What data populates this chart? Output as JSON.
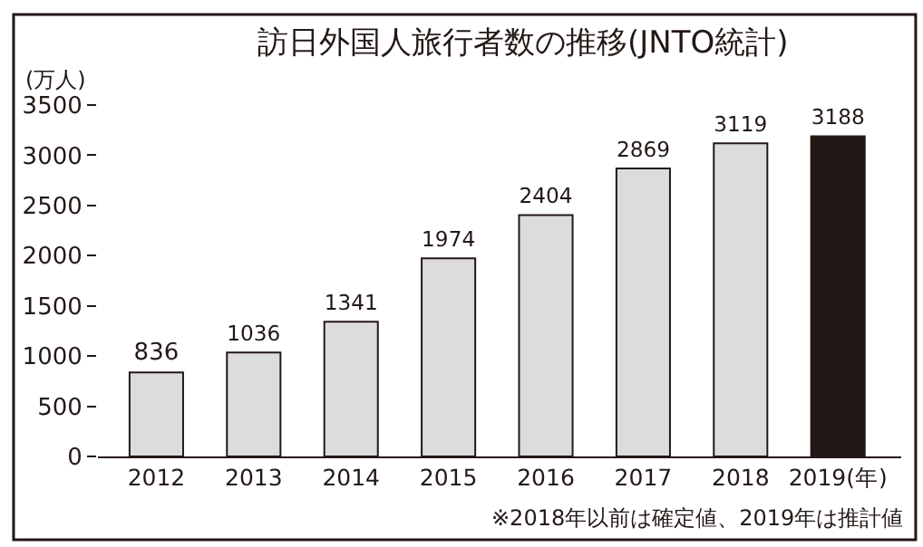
{
  "chart_data": {
    "type": "bar",
    "title": "訪日外国人旅行者数の推移(JNTO統計)",
    "ylabel": "(万人)",
    "categories": [
      "2012",
      "2013",
      "2014",
      "2015",
      "2016",
      "2017",
      "2018",
      "2019(年)"
    ],
    "values": [
      836,
      1036,
      1341,
      1974,
      2404,
      2869,
      3119,
      3188
    ],
    "colors": [
      "#dcdcdc",
      "#dcdcdc",
      "#dcdcdc",
      "#dcdcdc",
      "#dcdcdc",
      "#dcdcdc",
      "#dcdcdc",
      "#231815"
    ],
    "ylim": [
      0,
      3500
    ],
    "yticks": [
      0,
      500,
      1000,
      1500,
      2000,
      2500,
      3000,
      3500
    ],
    "data_labels": true,
    "annotations": [
      "※2018年以前は確定値、2019年は推計値"
    ]
  }
}
